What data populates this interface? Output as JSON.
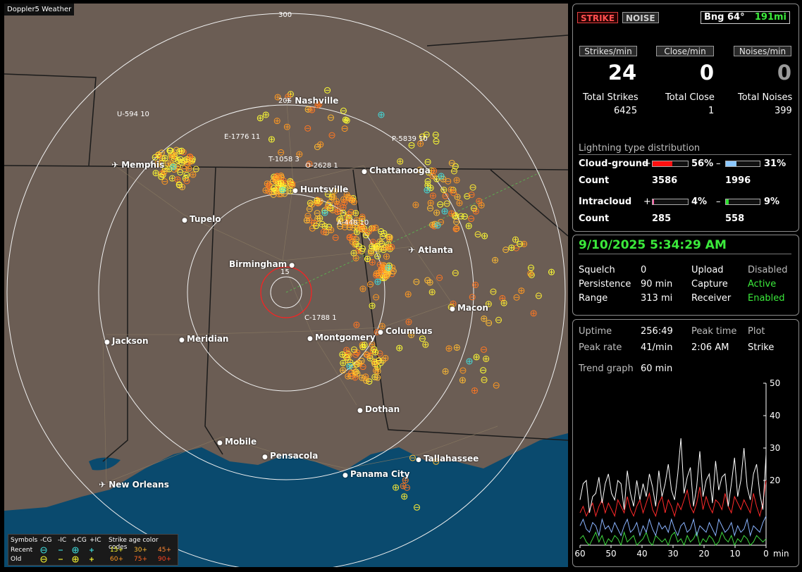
{
  "map": {
    "brand": "Doppler5 Weather",
    "range_labels": [
      "300",
      "205",
      "15"
    ],
    "cities": [
      {
        "name": "Nashville",
        "kind": "airport"
      },
      {
        "name": "Memphis",
        "kind": "airport"
      },
      {
        "name": "Chattanooga",
        "kind": "dot"
      },
      {
        "name": "Huntsville",
        "kind": "dot"
      },
      {
        "name": "Tupelo",
        "kind": "dot"
      },
      {
        "name": "Atlanta",
        "kind": "airport"
      },
      {
        "name": "Birmingham",
        "kind": "dot"
      },
      {
        "name": "Macon",
        "kind": "dot"
      },
      {
        "name": "Jackson",
        "kind": "dot"
      },
      {
        "name": "Meridian",
        "kind": "dot"
      },
      {
        "name": "Montgomery",
        "kind": "dot"
      },
      {
        "name": "Columbus",
        "kind": "dot"
      },
      {
        "name": "Dothan",
        "kind": "dot"
      },
      {
        "name": "Mobile",
        "kind": "dot"
      },
      {
        "name": "Pensacola",
        "kind": "dot"
      },
      {
        "name": "Tallahassee",
        "kind": "dot"
      },
      {
        "name": "Panama City",
        "kind": "dot"
      },
      {
        "name": "New Orleans",
        "kind": "airport"
      }
    ],
    "storm_labels": [
      "U-594 10",
      "E-1776 11",
      "T-1058 3",
      "O-2628 1",
      "P-5839 10",
      "A-440 10",
      "C-1788 1"
    ],
    "legend": {
      "symbols_label": "Symbols",
      "headers": [
        "-CG",
        "-IC",
        "+CG",
        "+IC"
      ],
      "rows": [
        {
          "label": "Recent",
          "ages": [
            "15+",
            "30+",
            "45+"
          ]
        },
        {
          "label": "Old",
          "ages": [
            "60+",
            "75+",
            "90+"
          ]
        }
      ],
      "age_title": "Strike age color codes",
      "age_colors": [
        "#ffff33",
        "#ffbb33",
        "#ff8833",
        "#ff9922",
        "#ff6622",
        "#ff4422"
      ]
    }
  },
  "header": {
    "strike_tab": "STRIKE",
    "noise_tab": "NOISE",
    "bearing": "Bng 64°",
    "distance": "191mi"
  },
  "rates": {
    "strikes_label": "Strikes/min",
    "close_label": "Close/min",
    "noises_label": "Noises/min",
    "strikes": "24",
    "close": "0",
    "noises": "0",
    "total_strikes_label": "Total Strikes",
    "total_close_label": "Total Close",
    "total_noises_label": "Total Noises",
    "total_strikes": "6425",
    "total_close": "1",
    "total_noises": "399"
  },
  "distribution": {
    "title": "Lightning type distribution",
    "cg_label": "Cloud-ground",
    "ic_label": "Intracloud",
    "count_label": "Count",
    "plus": "+",
    "minus": "–",
    "cg_pos_pct": "56%",
    "cg_neg_pct": "31%",
    "cg_pos_count": "3586",
    "cg_neg_count": "1996",
    "ic_pos_pct": "4%",
    "ic_neg_pct": "9%",
    "ic_pos_count": "285",
    "ic_neg_count": "558",
    "cg_pos_frac": 0.56,
    "cg_neg_frac": 0.31,
    "ic_pos_frac": 0.04,
    "ic_neg_frac": 0.09
  },
  "status": {
    "datetime": "9/10/2025 5:34:29 AM",
    "squelch_label": "Squelch",
    "squelch": "0",
    "persistence_label": "Persistence",
    "persistence": "90 min",
    "range_label": "Range",
    "range": "313 mi",
    "upload_label": "Upload",
    "upload": "Disabled",
    "capture_label": "Capture",
    "capture": "Active",
    "receiver_label": "Receiver",
    "receiver": "Enabled"
  },
  "trend": {
    "uptime_label": "Uptime",
    "uptime": "256:49",
    "peak_time_label": "Peak time",
    "peak_time": "2:06 AM",
    "plot_label": "Plot",
    "plot": "Strike",
    "peak_rate_label": "Peak rate",
    "peak_rate": "41/min",
    "trend_graph_label": "Trend graph",
    "trend_graph": "60 min"
  },
  "chart_data": {
    "type": "line",
    "x_ticks": [
      "60",
      "50",
      "40",
      "30",
      "20",
      "10",
      "0"
    ],
    "x_unit": "min",
    "y_ticks": [
      "50",
      "40",
      "30",
      "20"
    ],
    "ylim": [
      0,
      50
    ],
    "xlim": [
      60,
      0
    ],
    "series": [
      {
        "color": "#ffffff",
        "values": [
          14,
          19,
          20,
          10,
          15,
          16,
          21,
          13,
          19,
          22,
          16,
          14,
          20,
          19,
          11,
          23,
          16,
          12,
          20,
          14,
          19,
          15,
          22,
          18,
          12,
          23,
          15,
          19,
          25,
          17,
          14,
          22,
          33,
          16,
          21,
          24,
          12,
          18,
          29,
          15,
          20,
          22,
          13,
          26,
          17,
          21,
          22,
          12,
          19,
          27,
          15,
          20,
          30,
          18,
          14,
          22,
          25,
          16,
          11,
          28
        ]
      },
      {
        "color": "#ff2a2a",
        "values": [
          10,
          12,
          9,
          11,
          13,
          9,
          12,
          14,
          10,
          13,
          11,
          9,
          14,
          12,
          10,
          15,
          11,
          9,
          12,
          14,
          10,
          13,
          16,
          11,
          9,
          13,
          15,
          10,
          14,
          12,
          9,
          13,
          11,
          14,
          17,
          12,
          10,
          13,
          18,
          11,
          15,
          12,
          10,
          14,
          13,
          11,
          16,
          12,
          10,
          15,
          13,
          11,
          14,
          12,
          10,
          16,
          12,
          9,
          13,
          20
        ]
      },
      {
        "color": "#8ab4ff",
        "values": [
          6,
          8,
          5,
          4,
          7,
          6,
          3,
          8,
          5,
          6,
          4,
          7,
          5,
          3,
          6,
          8,
          4,
          5,
          7,
          3,
          6,
          4,
          8,
          5,
          3,
          7,
          5,
          6,
          4,
          8,
          5,
          3,
          6,
          7,
          4,
          5,
          8,
          3,
          6,
          5,
          4,
          7,
          5,
          3,
          8,
          6,
          4,
          5,
          7,
          3,
          6,
          4,
          5,
          8,
          3,
          6,
          5,
          4,
          7,
          9
        ]
      },
      {
        "color": "#3ed63e",
        "values": [
          2,
          3,
          1,
          0,
          2,
          4,
          1,
          3,
          0,
          2,
          1,
          3,
          2,
          0,
          4,
          1,
          2,
          3,
          0,
          1,
          2,
          4,
          1,
          0,
          3,
          2,
          1,
          2,
          0,
          3,
          4,
          1,
          2,
          0,
          3,
          1,
          2,
          4,
          0,
          2,
          1,
          3,
          2,
          0,
          1,
          4,
          2,
          1,
          3,
          0,
          2,
          1,
          3,
          2,
          0,
          1,
          3,
          2,
          1,
          2
        ]
      }
    ]
  }
}
